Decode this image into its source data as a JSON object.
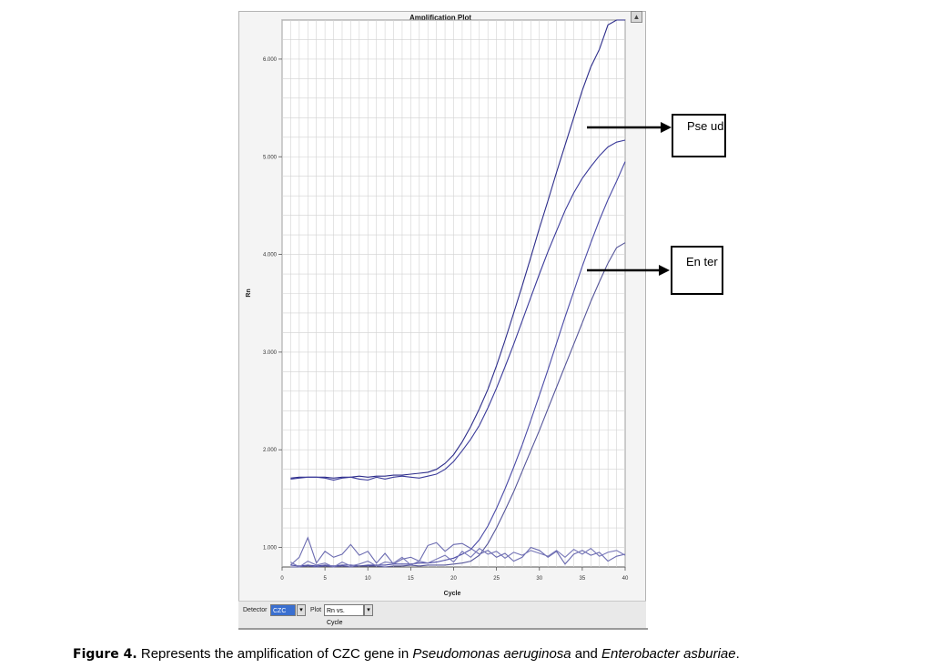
{
  "chart_data": {
    "type": "line",
    "title": "Amplification Plot",
    "xlabel": "Cycle",
    "ylabel": "Rn",
    "xlim": [
      0,
      40
    ],
    "ylim": [
      0.8,
      6.4
    ],
    "x_ticks": [
      0,
      5,
      10,
      15,
      20,
      25,
      30,
      35,
      40
    ],
    "y_ticks": [
      1.0,
      2.0,
      3.0,
      4.0,
      5.0,
      6.0
    ],
    "y_tick_labels": [
      "1.000",
      "2.000",
      "3.000",
      "4.000",
      "5.000",
      "6.000"
    ],
    "grid": true,
    "series": [
      {
        "x": [
          1,
          2,
          3,
          4,
          5,
          6,
          7,
          8,
          9,
          10,
          11,
          12,
          13,
          14,
          15,
          16,
          17,
          18,
          19,
          20,
          21,
          22,
          23,
          24,
          25,
          26,
          27,
          28,
          29,
          30,
          31,
          32,
          33,
          34,
          35,
          36,
          37,
          38,
          39,
          40
        ],
        "values": [
          1.71,
          1.72,
          1.72,
          1.72,
          1.72,
          1.71,
          1.72,
          1.72,
          1.73,
          1.72,
          1.73,
          1.73,
          1.74,
          1.74,
          1.75,
          1.76,
          1.77,
          1.8,
          1.86,
          1.95,
          2.08,
          2.24,
          2.42,
          2.62,
          2.86,
          3.12,
          3.4,
          3.68,
          3.97,
          4.27,
          4.55,
          4.84,
          5.12,
          5.4,
          5.68,
          5.92,
          6.1,
          6.35,
          6.5,
          6.4
        ]
      },
      {
        "x": [
          1,
          2,
          3,
          4,
          5,
          6,
          7,
          8,
          9,
          10,
          11,
          12,
          13,
          14,
          15,
          16,
          17,
          18,
          19,
          20,
          21,
          22,
          23,
          24,
          25,
          26,
          27,
          28,
          29,
          30,
          31,
          32,
          33,
          34,
          35,
          36,
          37,
          38,
          39,
          40
        ],
        "values": [
          1.7,
          1.71,
          1.72,
          1.72,
          1.71,
          1.69,
          1.71,
          1.72,
          1.7,
          1.69,
          1.72,
          1.7,
          1.72,
          1.73,
          1.72,
          1.71,
          1.73,
          1.75,
          1.8,
          1.88,
          1.99,
          2.11,
          2.25,
          2.43,
          2.63,
          2.85,
          3.08,
          3.32,
          3.56,
          3.8,
          4.03,
          4.24,
          4.45,
          4.63,
          4.78,
          4.9,
          5.01,
          5.1,
          5.15,
          5.17
        ]
      },
      {
        "x": [
          1,
          2,
          3,
          4,
          5,
          6,
          7,
          8,
          9,
          10,
          11,
          12,
          13,
          14,
          15,
          16,
          17,
          18,
          19,
          20,
          21,
          22,
          23,
          24,
          25,
          26,
          27,
          28,
          29,
          30,
          31,
          32,
          33,
          34,
          35,
          36,
          37,
          38,
          39,
          40
        ],
        "values": [
          0.82,
          0.81,
          0.82,
          0.81,
          0.82,
          0.81,
          0.82,
          0.82,
          0.81,
          0.82,
          0.82,
          0.82,
          0.83,
          0.83,
          0.83,
          0.84,
          0.84,
          0.85,
          0.87,
          0.89,
          0.93,
          0.98,
          1.08,
          1.22,
          1.4,
          1.6,
          1.82,
          2.05,
          2.3,
          2.56,
          2.82,
          3.09,
          3.36,
          3.62,
          3.88,
          4.12,
          4.35,
          4.56,
          4.75,
          4.95
        ]
      },
      {
        "x": [
          1,
          2,
          3,
          4,
          5,
          6,
          7,
          8,
          9,
          10,
          11,
          12,
          13,
          14,
          15,
          16,
          17,
          18,
          19,
          20,
          21,
          22,
          23,
          24,
          25,
          26,
          27,
          28,
          29,
          30,
          31,
          32,
          33,
          34,
          35,
          36,
          37,
          38,
          39,
          40
        ],
        "values": [
          0.8,
          0.8,
          0.81,
          0.8,
          0.81,
          0.8,
          0.81,
          0.8,
          0.81,
          0.81,
          0.81,
          0.8,
          0.81,
          0.81,
          0.82,
          0.81,
          0.82,
          0.82,
          0.82,
          0.83,
          0.84,
          0.86,
          0.92,
          1.04,
          1.2,
          1.38,
          1.57,
          1.78,
          1.99,
          2.2,
          2.42,
          2.64,
          2.86,
          3.08,
          3.3,
          3.52,
          3.72,
          3.91,
          4.07,
          4.12
        ]
      },
      {
        "x": [
          1,
          2,
          3,
          4,
          5,
          6,
          7,
          8,
          9,
          10,
          11,
          12,
          13,
          14,
          15,
          16,
          17,
          18,
          19,
          20,
          21,
          22,
          23,
          24,
          25,
          26,
          27,
          28,
          29,
          30,
          31,
          32,
          33,
          34,
          35,
          36,
          37,
          38,
          39,
          40
        ],
        "values": [
          0.82,
          0.9,
          1.1,
          0.84,
          0.96,
          0.9,
          0.93,
          1.03,
          0.92,
          0.96,
          0.84,
          0.94,
          0.83,
          0.88,
          0.9,
          0.86,
          1.02,
          1.05,
          0.96,
          1.03,
          1.04,
          0.99,
          0.93,
          0.97,
          0.9,
          0.94,
          0.86,
          0.9,
          1.0,
          0.97,
          0.9,
          0.96,
          0.83,
          0.93,
          0.97,
          0.92,
          0.95,
          0.86,
          0.91,
          0.93
        ]
      },
      {
        "x": [
          1,
          2,
          3,
          4,
          5,
          6,
          7,
          8,
          9,
          10,
          11,
          12,
          13,
          14,
          15,
          16,
          17,
          18,
          19,
          20,
          21,
          22,
          23,
          24,
          25,
          26,
          27,
          28,
          29,
          30,
          31,
          32,
          33,
          34,
          35,
          36,
          37,
          38,
          39,
          40
        ],
        "values": [
          0.85,
          0.8,
          0.86,
          0.82,
          0.84,
          0.8,
          0.85,
          0.81,
          0.83,
          0.86,
          0.81,
          0.85,
          0.84,
          0.9,
          0.82,
          0.86,
          0.84,
          0.88,
          0.92,
          0.85,
          0.96,
          0.9,
          0.99,
          0.93,
          0.96,
          0.89,
          0.95,
          0.92,
          0.97,
          0.94,
          0.91,
          0.97,
          0.9,
          0.98,
          0.93,
          0.99,
          0.91,
          0.95,
          0.97,
          0.92
        ]
      }
    ],
    "line_colors": [
      "#2c2c8a",
      "#3a3a9a",
      "#4a4aa6",
      "#555599",
      "#6a6ab0",
      "#7777b8"
    ]
  },
  "controls": {
    "detector_label": "Detector",
    "detector_value": "CZC",
    "plot_label": "Plot",
    "plot_value": "Rn vs. Cycle"
  },
  "annotations": {
    "pseud_label": "Pse ud",
    "enter_label": "En ter"
  },
  "caption": {
    "figure_label": "Figure 4.",
    "text_before": " Represents the amplification of CZC gene in ",
    "species1": "Pseudomonas aeruginosa",
    "text_middle": " and ",
    "species2": "Enterobacter asburiae",
    "text_after": "."
  }
}
